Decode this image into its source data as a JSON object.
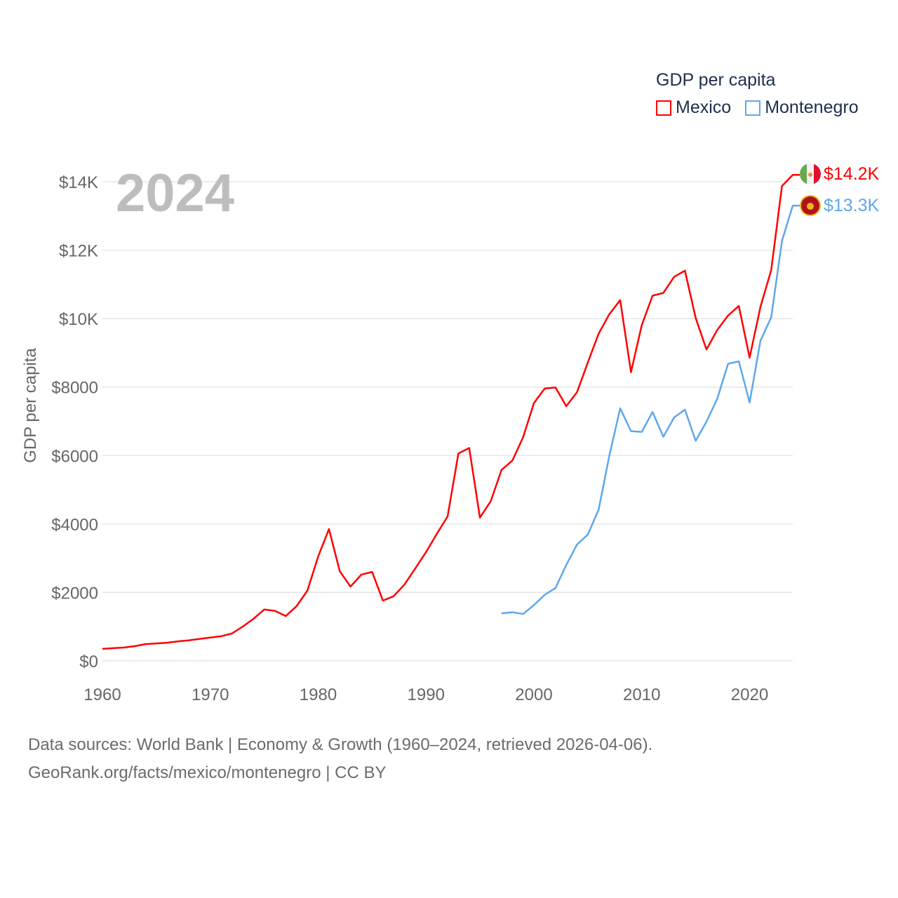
{
  "legend": {
    "title": "GDP per capita",
    "items": [
      {
        "label": "Mexico",
        "color": "#ff0000"
      },
      {
        "label": "Montenegro",
        "color": "#5ea7ec"
      }
    ]
  },
  "year_overlay": "2024",
  "footer": {
    "line1": "Data sources: World Bank | Economy & Growth (1960–2024, retrieved 2026-04-06).",
    "line2": "GeoRank.org/facts/mexico/montenegro | CC BY"
  },
  "chart_data": {
    "type": "line",
    "title": "GDP per capita",
    "xlabel": "",
    "ylabel": "GDP per capita",
    "xlim": [
      1960,
      2024
    ],
    "ylim": [
      0,
      14000
    ],
    "grid": true,
    "legend_position": "top-right",
    "x_ticks": [
      1960,
      1970,
      1980,
      1990,
      2000,
      2010,
      2020
    ],
    "y_ticks": [
      {
        "v": 0,
        "label": "$0"
      },
      {
        "v": 2000,
        "label": "$2000"
      },
      {
        "v": 4000,
        "label": "$4000"
      },
      {
        "v": 6000,
        "label": "$6000"
      },
      {
        "v": 8000,
        "label": "$8000"
      },
      {
        "v": 10000,
        "label": "$10K"
      },
      {
        "v": 12000,
        "label": "$12K"
      },
      {
        "v": 14000,
        "label": "$14K"
      }
    ],
    "series": [
      {
        "name": "Mexico",
        "color": "#ff0000",
        "end_label": "$14.2K",
        "start_year": 1960,
        "values": [
          350,
          370,
          390,
          430,
          490,
          510,
          530,
          570,
          600,
          640,
          680,
          720,
          800,
          1000,
          1230,
          1500,
          1460,
          1310,
          1600,
          2050,
          3050,
          3850,
          2620,
          2170,
          2520,
          2600,
          1760,
          1890,
          2230,
          2700,
          3180,
          3710,
          4220,
          6060,
          6220,
          4185,
          4665,
          5580,
          5850,
          6530,
          7530,
          7955,
          7990,
          7440,
          7850,
          8720,
          9560,
          10130,
          10540,
          8435,
          9810,
          10670,
          10750,
          11220,
          11400,
          10020,
          9100,
          9670,
          10090,
          10370,
          8860,
          10340,
          11420,
          13870,
          14200
        ]
      },
      {
        "name": "Montenegro",
        "color": "#5ea7ec",
        "end_label": "$13.3K",
        "start_year": 1997,
        "values": [
          1387,
          1420,
          1370,
          1630,
          1930,
          2130,
          2800,
          3400,
          3690,
          4420,
          6000,
          7380,
          6710,
          6690,
          7270,
          6550,
          7110,
          7340,
          6430,
          6990,
          7660,
          8680,
          8750,
          7550,
          9350,
          10040,
          12270,
          13300
        ]
      }
    ]
  }
}
